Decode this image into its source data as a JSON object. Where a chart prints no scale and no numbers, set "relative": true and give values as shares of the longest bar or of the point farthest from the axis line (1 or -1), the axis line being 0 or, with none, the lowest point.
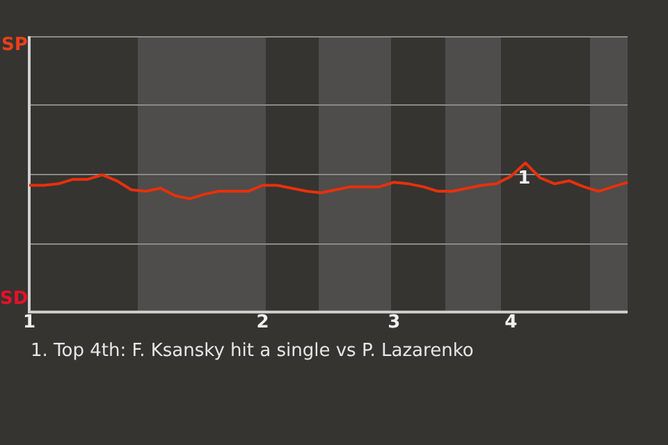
{
  "chart_data": {
    "type": "line",
    "relative": true,
    "categories": [
      "1",
      null,
      null,
      null,
      null,
      null,
      null,
      null,
      null,
      null,
      null,
      null,
      null,
      null,
      null,
      null,
      "2",
      null,
      null,
      null,
      null,
      null,
      null,
      null,
      null,
      "3",
      null,
      null,
      null,
      null,
      null,
      null,
      null,
      "4",
      null,
      null,
      null,
      null,
      null,
      null,
      null,
      null
    ],
    "series": [
      {
        "color": "#e8300c",
        "values": [
          0.85,
          0.85,
          0.86,
          0.89,
          0.89,
          0.92,
          0.88,
          0.82,
          0.81,
          0.83,
          0.78,
          0.76,
          0.79,
          0.81,
          0.81,
          0.81,
          0.85,
          0.85,
          0.83,
          0.81,
          0.8,
          0.82,
          0.84,
          0.84,
          0.84,
          0.87,
          0.86,
          0.84,
          0.81,
          0.81,
          0.83,
          0.85,
          0.86,
          0.91,
          1,
          0.9,
          0.86,
          0.88,
          0.84,
          0.81,
          0.84,
          0.87
        ]
      }
    ],
    "ref_lines": [
      {
        "axis": "y",
        "value": 0.46,
        "color": "#8a8a88"
      },
      {
        "axis": "y",
        "value": 0.93,
        "color": "#8a8a88"
      },
      {
        "axis": "y",
        "value": 1.39,
        "color": "#8a8a88"
      },
      {
        "axis": "y",
        "value": 1.85,
        "color": "#8a8a88"
      }
    ],
    "annotations": [
      "SP",
      "SD",
      {
        "text": "1",
        "y": 1
      },
      "1. Top 4th: F. Ksansky hit a single vs P. Lazarenko"
    ],
    "legend": false,
    "marker": "none",
    "line_style": "solid"
  }
}
